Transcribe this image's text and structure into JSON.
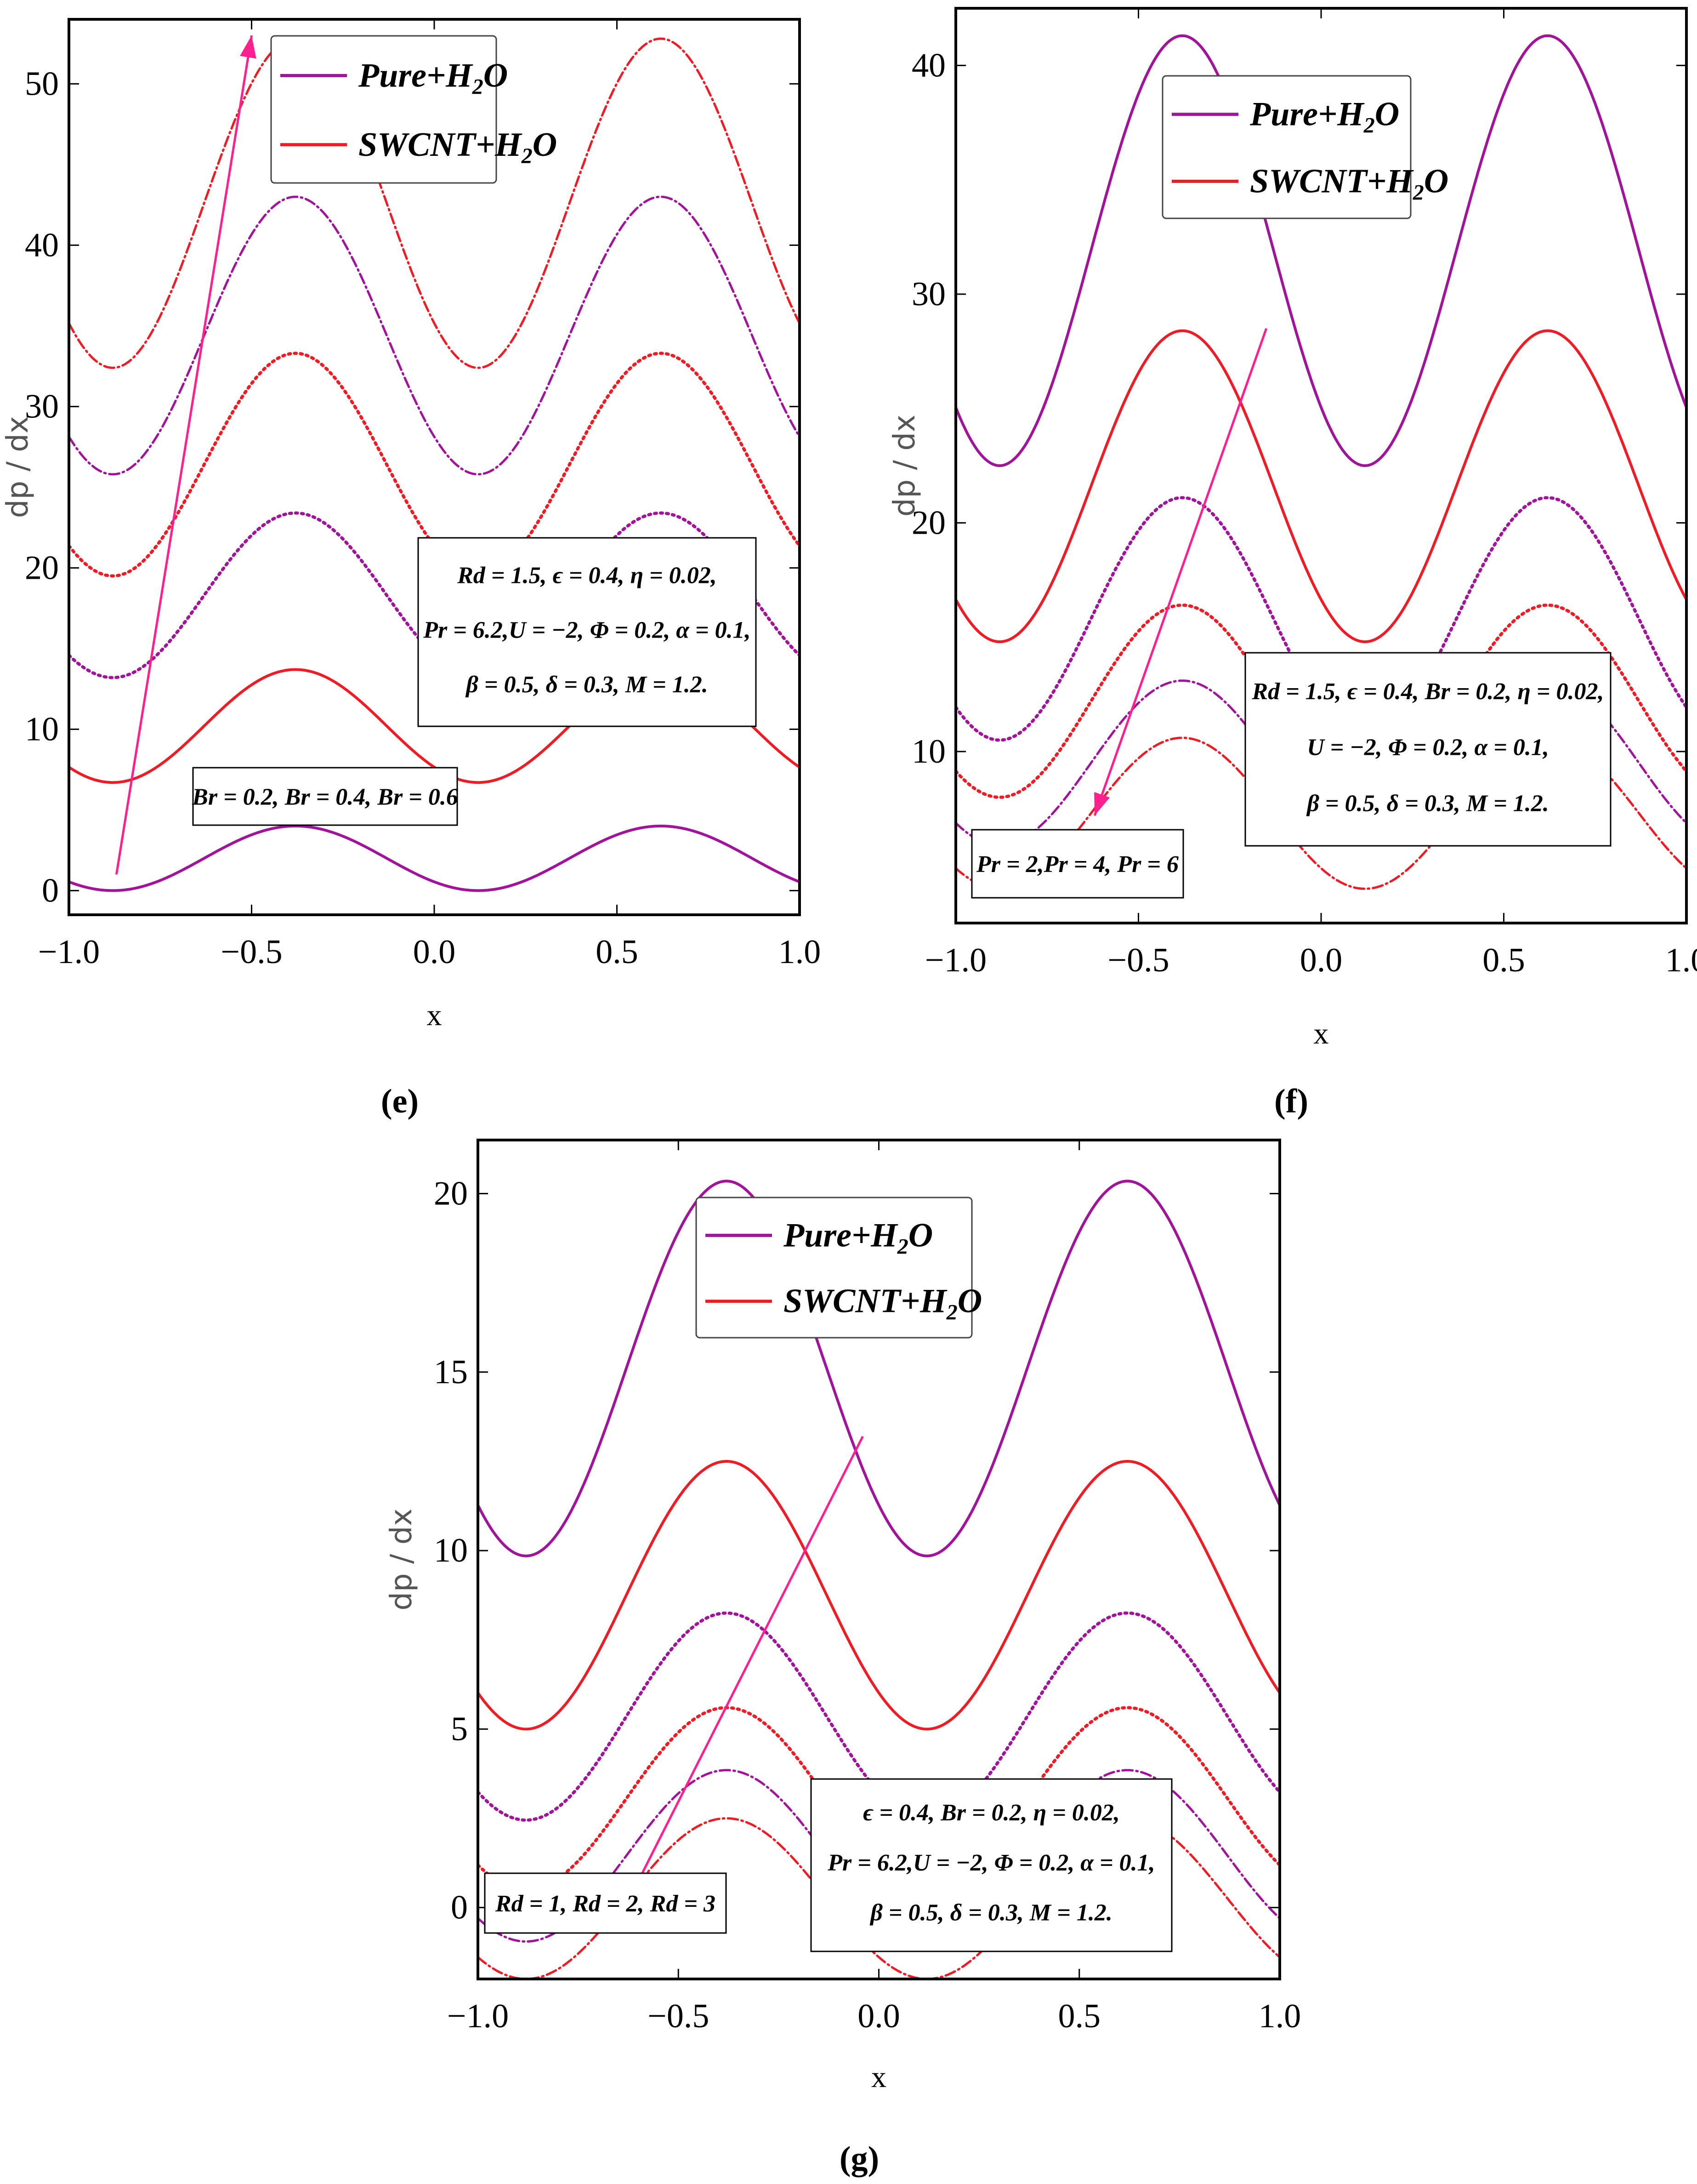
{
  "figure": {
    "caption_labels": [
      "(e)",
      "(f)",
      "(g)"
    ]
  },
  "colors": {
    "pure": "#a0139a",
    "swcnt": "#ee1c25",
    "arrow": "#ff1f8e"
  },
  "chart_data": [
    {
      "id": "e",
      "label": "(e)",
      "type": "line",
      "xlabel": "x",
      "ylabel": "dp / dx",
      "xlim": [
        -1.0,
        1.0
      ],
      "ylim": [
        -1.5,
        54.0
      ],
      "xticks": [
        -1.0,
        -0.5,
        0.0,
        0.5,
        1.0
      ],
      "xtick_labels": [
        "-1.0",
        "-0.5",
        "0.0",
        "0.5",
        "1.0"
      ],
      "yticks": [
        0,
        10,
        20,
        30,
        40,
        50
      ],
      "ytick_labels": [
        "0",
        "10",
        "20",
        "30",
        "40",
        "50"
      ],
      "legend": [
        {
          "name": "Pure+H2O",
          "text": "Pure+H",
          "sub": "2",
          "tail": "O",
          "color": "#a0139a"
        },
        {
          "name": "SWCNT+H2O",
          "text": "SWCNT+H",
          "sub": "2",
          "tail": "O",
          "color": "#ee1c25"
        }
      ],
      "parameter_box": [
        "Rd = 1.5, ϵ = 0.4, η = 0.02,",
        "Pr = 6.2,U = −2, Φ = 0.2, α = 0.1,",
        "β = 0.5, δ = 0.3, M = 1.2."
      ],
      "varying_label": "Br = 0.2, Br = 0.4, Br = 0.6",
      "trend_arrow": {
        "from": [
          -0.87,
          1.0
        ],
        "to": [
          -0.5,
          53.0
        ]
      },
      "series": [
        {
          "name": "Pure+H2O, Br = 0.2",
          "fluid": "pure",
          "style": "solid",
          "mean": 2.0,
          "amp": 2.0,
          "x": [
            -1.0,
            -0.63,
            -0.13,
            0.37,
            0.87,
            1.0
          ]
        },
        {
          "name": "SWCNT+H2O, Br = 0.2",
          "fluid": "swcnt",
          "style": "solid",
          "mean": 10.2,
          "amp": 3.5
        },
        {
          "name": "Pure+H2O, Br = 0.4",
          "fluid": "pure",
          "style": "dotted",
          "mean": 18.3,
          "amp": 5.1
        },
        {
          "name": "SWCNT+H2O, Br = 0.4",
          "fluid": "swcnt",
          "style": "dotted",
          "mean": 26.4,
          "amp": 6.9
        },
        {
          "name": "Pure+H2O, Br = 0.6",
          "fluid": "pure",
          "style": "dashdot",
          "mean": 34.4,
          "amp": 8.6
        },
        {
          "name": "SWCNT+H2O, Br = 0.6",
          "fluid": "swcnt",
          "style": "dashdot",
          "mean": 42.6,
          "amp": 10.2
        }
      ]
    },
    {
      "id": "f",
      "label": "(f)",
      "type": "line",
      "xlabel": "x",
      "ylabel": "dp / dx",
      "xlim": [
        -1.0,
        1.0
      ],
      "ylim": [
        2.5,
        42.5
      ],
      "xticks": [
        -1.0,
        -0.5,
        0.0,
        0.5,
        1.0
      ],
      "xtick_labels": [
        "-1.0",
        "-0.5",
        "0.0",
        "0.5",
        "1.0"
      ],
      "yticks": [
        10,
        20,
        30,
        40
      ],
      "ytick_labels": [
        "10",
        "20",
        "30",
        "40"
      ],
      "legend": [
        {
          "name": "Pure+H2O",
          "text": "Pure+H",
          "sub": "2",
          "tail": "O",
          "color": "#a0139a"
        },
        {
          "name": "SWCNT+H2O",
          "text": "SWCNT+H",
          "sub": "2",
          "tail": "O",
          "color": "#ee1c25"
        }
      ],
      "parameter_box": [
        "Rd = 1.5, ϵ = 0.4, Br = 0.2, η = 0.02,",
        "U = −2, Φ = 0.2, α = 0.1,",
        "β = 0.5, δ = 0.3, M = 1.2."
      ],
      "varying_label": "Pr = 2,Pr = 4, Pr = 6",
      "trend_arrow": {
        "from": [
          -0.15,
          28.5
        ],
        "to": [
          -0.62,
          7.2
        ]
      },
      "series": [
        {
          "name": "Pure+H2O, Pr = 2",
          "fluid": "pure",
          "style": "solid",
          "mean": 31.9,
          "amp": 9.4
        },
        {
          "name": "SWCNT+H2O, Pr = 2",
          "fluid": "swcnt",
          "style": "solid",
          "mean": 21.6,
          "amp": 6.8
        },
        {
          "name": "Pure+H2O, Pr = 4",
          "fluid": "pure",
          "style": "dotted",
          "mean": 15.8,
          "amp": 5.3
        },
        {
          "name": "SWCNT+H2O, Pr = 4",
          "fluid": "swcnt",
          "style": "dotted",
          "mean": 12.2,
          "amp": 4.2
        },
        {
          "name": "Pure+H2O, Pr = 6",
          "fluid": "pure",
          "style": "dashdot",
          "mean": 9.5,
          "amp": 3.6
        },
        {
          "name": "SWCNT+H2O, Pr = 6",
          "fluid": "swcnt",
          "style": "dashdot",
          "mean": 7.3,
          "amp": 3.3
        }
      ]
    },
    {
      "id": "g",
      "label": "(g)",
      "type": "line",
      "xlabel": "x",
      "ylabel": "dp / dx",
      "xlim": [
        -1.0,
        1.0
      ],
      "ylim": [
        -2.0,
        21.5
      ],
      "xticks": [
        -1.0,
        -0.5,
        0.0,
        0.5,
        1.0
      ],
      "xtick_labels": [
        "-1.0",
        "-0.5",
        "0.0",
        "0.5",
        "1.0"
      ],
      "yticks": [
        0,
        5,
        10,
        15,
        20
      ],
      "ytick_labels": [
        "0",
        "5",
        "10",
        "15",
        "20"
      ],
      "legend": [
        {
          "name": "Pure+H2O",
          "text": "Pure+H",
          "sub": "2",
          "tail": "O",
          "color": "#a0139a"
        },
        {
          "name": "SWCNT+H2O",
          "text": "SWCNT+H",
          "sub": "2",
          "tail": "O",
          "color": "#ee1c25"
        }
      ],
      "parameter_box": [
        "ϵ = 0.4, Br = 0.2, η = 0.02,",
        "Pr = 6.2,U = −2, Φ = 0.2, α = 0.1,",
        "β = 0.5, δ = 0.3, M = 1.2."
      ],
      "varying_label": "Rd = 1, Rd = 2, Rd = 3",
      "trend_arrow": {
        "from": [
          -0.04,
          13.2
        ],
        "to": [
          -0.62,
          0.3
        ]
      },
      "series": [
        {
          "name": "Pure+H2O, Rd = 1",
          "fluid": "pure",
          "style": "solid",
          "mean": 15.1,
          "amp": 5.25
        },
        {
          "name": "SWCNT+H2O, Rd = 1",
          "fluid": "swcnt",
          "style": "solid",
          "mean": 8.75,
          "amp": 3.75
        },
        {
          "name": "Pure+H2O, Rd = 2",
          "fluid": "pure",
          "style": "dotted",
          "mean": 5.35,
          "amp": 2.9
        },
        {
          "name": "SWCNT+H2O, Rd = 2",
          "fluid": "swcnt",
          "style": "dotted",
          "mean": 3.05,
          "amp": 2.55
        },
        {
          "name": "Pure+H2O, Rd = 3",
          "fluid": "pure",
          "style": "dashdot",
          "mean": 1.45,
          "amp": 2.4
        },
        {
          "name": "SWCNT+H2O, Rd = 3",
          "fluid": "swcnt",
          "style": "dashdot",
          "mean": 0.25,
          "amp": 2.25
        }
      ]
    }
  ]
}
